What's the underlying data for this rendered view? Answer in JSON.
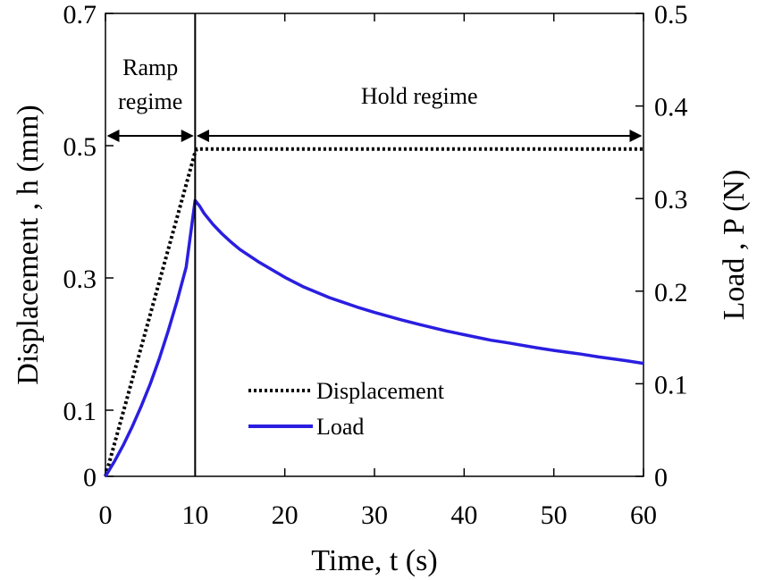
{
  "chart_data": {
    "type": "line",
    "xlabel": "Time, t (s)",
    "ylabel_left": "Displacement , h (mm)",
    "ylabel_right": "Load , P (N)",
    "xlim": [
      0,
      60
    ],
    "ylim_left": [
      0,
      0.7
    ],
    "ylim_right": [
      0,
      0.5
    ],
    "x_ticks": [
      "0",
      "10",
      "20",
      "30",
      "40",
      "50",
      "60"
    ],
    "y_left_ticks": [
      "0",
      "0.1",
      "0.3",
      "0.5",
      "0.7"
    ],
    "y_right_ticks": [
      "0",
      "0.1",
      "0.2",
      "0.3",
      "0.4",
      "0.5"
    ],
    "grid": false,
    "legend_position": "lower-center",
    "series": [
      {
        "name": "Displacement",
        "axis": "left",
        "style": "dotted",
        "color": "#000000",
        "x": [
          0,
          10,
          10.2,
          60
        ],
        "y": [
          0,
          0.49,
          0.495,
          0.495
        ]
      },
      {
        "name": "Load",
        "axis": "right",
        "style": "solid",
        "color": "#2a1ee0",
        "x": [
          0,
          1,
          2,
          3,
          4,
          5,
          6,
          7,
          8,
          9,
          10,
          10.5,
          11,
          12,
          13,
          14,
          15,
          17,
          20,
          22,
          25,
          28,
          30,
          33,
          35,
          38,
          40,
          43,
          45,
          48,
          50,
          53,
          55,
          58,
          60
        ],
        "y": [
          0,
          0.016,
          0.034,
          0.054,
          0.076,
          0.1,
          0.127,
          0.157,
          0.19,
          0.226,
          0.298,
          0.292,
          0.284,
          0.272,
          0.262,
          0.253,
          0.245,
          0.232,
          0.215,
          0.205,
          0.193,
          0.183,
          0.177,
          0.169,
          0.164,
          0.157,
          0.153,
          0.147,
          0.144,
          0.139,
          0.136,
          0.132,
          0.129,
          0.125,
          0.122
        ]
      }
    ],
    "annotations": [
      {
        "text": "Ramp regime",
        "lines": [
          "Ramp",
          "regime"
        ],
        "x_range": [
          0,
          10
        ]
      },
      {
        "text": "Hold regime",
        "x_range": [
          10,
          60
        ]
      }
    ],
    "vertical_marker_x": 10
  }
}
